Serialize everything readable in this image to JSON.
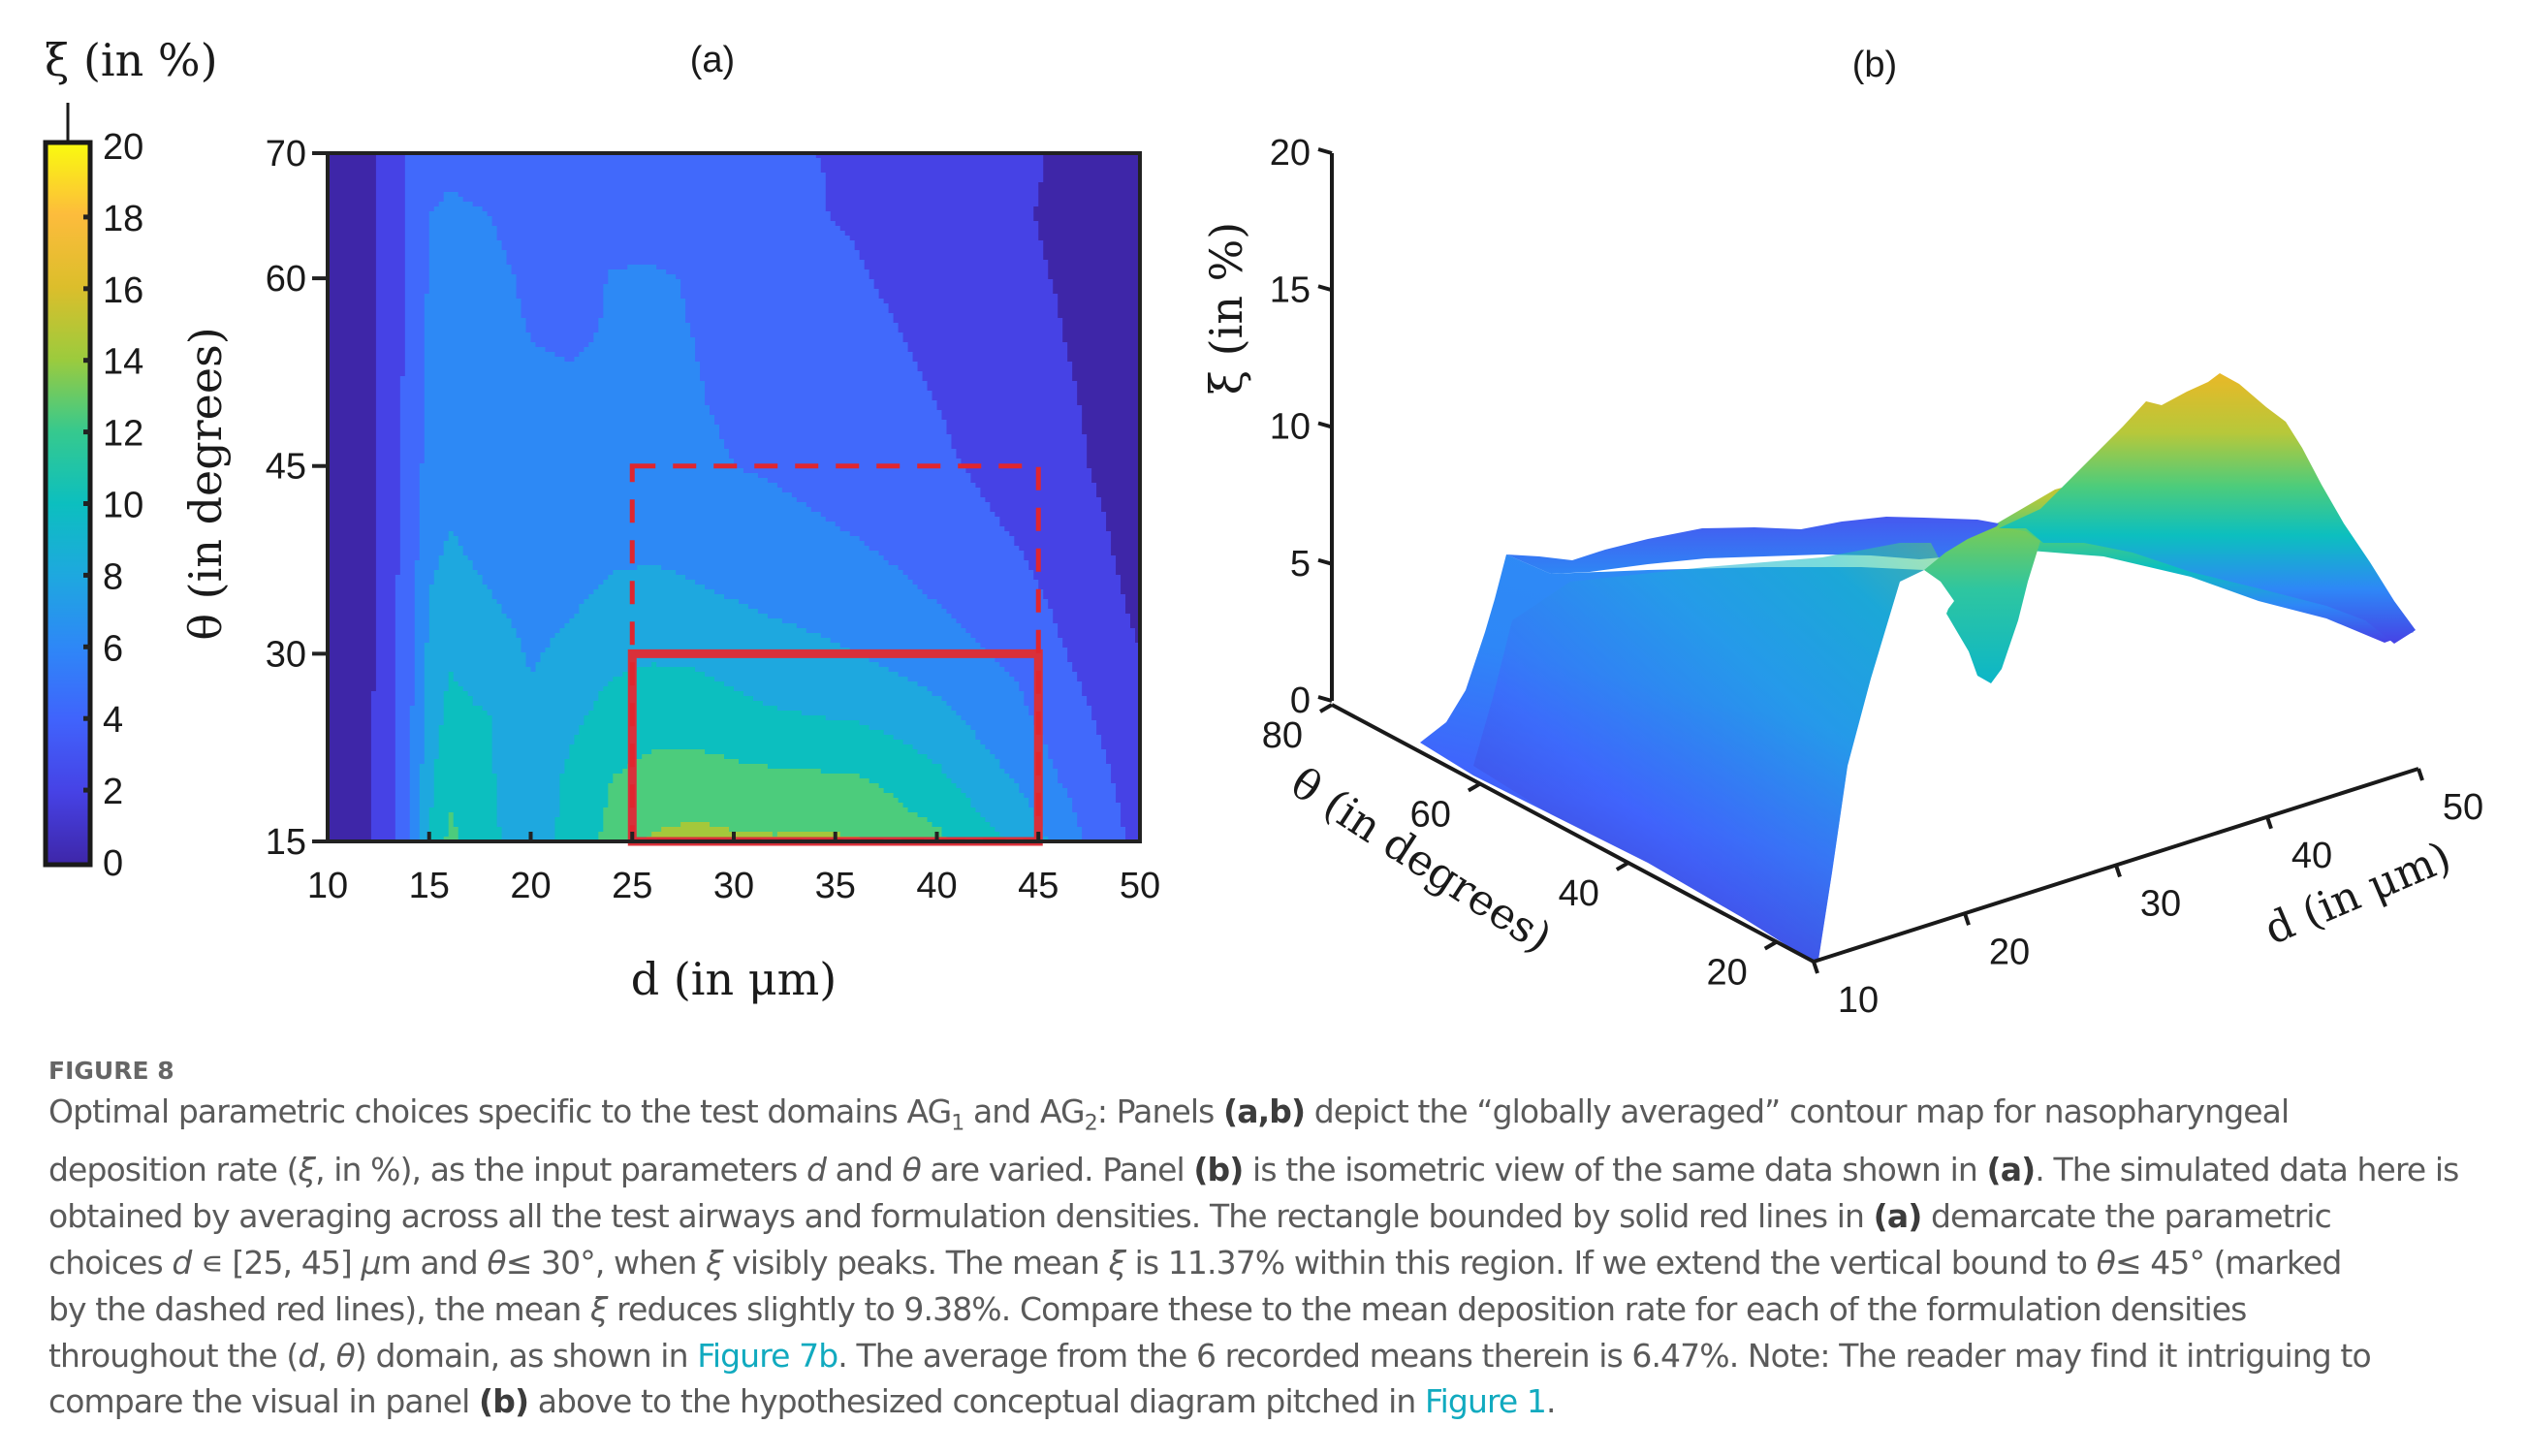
{
  "figure": {
    "label": "FIGURE 8",
    "caption_lines": [
      [
        {
          "t": "Optimal parametric choices specific to the test domains AG"
        },
        {
          "t": "1",
          "sub": true
        },
        {
          "t": " and AG"
        },
        {
          "t": "2",
          "sub": true
        },
        {
          "t": ": Panels "
        },
        {
          "t": "(a,b)",
          "b": true
        },
        {
          "t": " depict the “globally averaged” contour map for nasopharyngeal"
        }
      ],
      [
        {
          "t": "deposition rate ("
        },
        {
          "t": "ξ",
          "i": true
        },
        {
          "t": ", in %), as the input parameters "
        },
        {
          "t": "d",
          "i": true
        },
        {
          "t": " and "
        },
        {
          "t": "θ",
          "i": true
        },
        {
          "t": " are varied. Panel "
        },
        {
          "t": "(b)",
          "b": true
        },
        {
          "t": " is the isometric view of the same data shown in "
        },
        {
          "t": "(a)",
          "b": true
        },
        {
          "t": ". The simulated data here is"
        }
      ],
      [
        {
          "t": "obtained by averaging across all the test airways and formulation densities. The rectangle bounded by solid red lines in "
        },
        {
          "t": "(a)",
          "b": true
        },
        {
          "t": " demarcate the parametric"
        }
      ],
      [
        {
          "t": "choices "
        },
        {
          "t": "d",
          "i": true
        },
        {
          "t": " ∊ [25, 45] "
        },
        {
          "t": "μ",
          "i": true
        },
        {
          "t": "m and "
        },
        {
          "t": "θ",
          "i": true
        },
        {
          "t": "≤ 30°, when "
        },
        {
          "t": "ξ",
          "i": true
        },
        {
          "t": " visibly peaks. The mean "
        },
        {
          "t": "ξ",
          "i": true
        },
        {
          "t": " is 11.37% within this region. If we extend the vertical bound to "
        },
        {
          "t": "θ",
          "i": true
        },
        {
          "t": "≤ 45° (marked"
        }
      ],
      [
        {
          "t": "by the dashed red lines), the mean "
        },
        {
          "t": "ξ",
          "i": true
        },
        {
          "t": " reduces slightly to 9.38%. Compare these to the mean deposition rate for each of the formulation densities"
        }
      ],
      [
        {
          "t": "throughout the ("
        },
        {
          "t": "d",
          "i": true
        },
        {
          "t": ", "
        },
        {
          "t": "θ",
          "i": true
        },
        {
          "t": ") domain, as shown in "
        },
        {
          "t": "Figure 7b",
          "link": true
        },
        {
          "t": ". The average from the 6 recorded means therein is 6.47%. Note: The reader may find it intriguing to"
        }
      ],
      [
        {
          "t": "compare the visual in panel "
        },
        {
          "t": "(b)",
          "b": true
        },
        {
          "t": " above to the hypothesized conceptual diagram pitched in "
        },
        {
          "t": "Figure 1",
          "link": true
        },
        {
          "t": "."
        }
      ]
    ]
  },
  "colors": {
    "region_solid": "#d9303a",
    "region_dashed": "#e0262e",
    "caption_text": "#5a5a5a",
    "link": "#11aabf"
  },
  "chart_data": [
    {
      "type": "heatmap",
      "panel_label": "(a)",
      "xlabel": "d (in μm)",
      "ylabel": "θ (in degrees)",
      "colorbar_label": "ξ (in %)",
      "x_ticks": [
        "10",
        "15",
        "20",
        "25",
        "30",
        "35",
        "40",
        "45",
        "50"
      ],
      "y_ticks": [
        "15",
        "30",
        "45",
        "60",
        "70"
      ],
      "colorbar_ticks": [
        "0",
        "2",
        "4",
        "6",
        "8",
        "10",
        "12",
        "14",
        "16",
        "18",
        "20"
      ],
      "xlim": [
        10,
        50
      ],
      "ylim": [
        15,
        70
      ],
      "clim": [
        0,
        20
      ],
      "contour_levels": [
        0,
        2,
        4,
        6,
        8,
        10,
        12,
        14
      ],
      "x": [
        10,
        12,
        14,
        15,
        16,
        18,
        20,
        22,
        24,
        26,
        28,
        30,
        32,
        34,
        36,
        38,
        40,
        42,
        44,
        46,
        48,
        50
      ],
      "y": [
        15,
        20,
        25,
        30,
        35,
        40,
        45,
        50,
        55,
        60,
        65,
        70
      ],
      "z": [
        [
          0.5,
          1.5,
          5.5,
          10.0,
          12.5,
          10.5,
          8.5,
          11.0,
          12.5,
          14.2,
          14.5,
          14.3,
          14.2,
          14.3,
          14.2,
          13.0,
          12.5,
          11.0,
          9.5,
          7.5,
          5.0,
          3.5
        ],
        [
          0.5,
          1.5,
          5.5,
          9.5,
          11.5,
          10.2,
          8.5,
          10.5,
          12.0,
          12.8,
          13.0,
          12.6,
          12.4,
          12.3,
          12.2,
          11.5,
          10.5,
          9.0,
          7.8,
          6.0,
          4.5,
          3.0
        ],
        [
          0.5,
          1.5,
          5.5,
          9.0,
          10.5,
          10.0,
          8.3,
          9.5,
          10.8,
          11.0,
          11.0,
          10.6,
          10.2,
          10.0,
          9.8,
          9.2,
          8.5,
          7.5,
          6.5,
          5.0,
          3.8,
          2.5
        ],
        [
          0.5,
          1.5,
          5.0,
          8.5,
          9.8,
          9.0,
          7.8,
          8.5,
          9.5,
          9.8,
          9.7,
          9.2,
          8.8,
          8.5,
          8.0,
          7.5,
          7.0,
          6.2,
          5.5,
          4.2,
          3.2,
          2.0
        ],
        [
          0.5,
          1.5,
          5.0,
          8.0,
          8.8,
          8.0,
          7.2,
          7.6,
          8.3,
          8.5,
          8.2,
          7.8,
          7.4,
          7.0,
          6.7,
          6.3,
          5.8,
          5.2,
          4.5,
          3.6,
          2.6,
          1.5
        ],
        [
          0.5,
          1.5,
          4.8,
          7.2,
          8.0,
          7.2,
          6.6,
          6.9,
          7.3,
          7.3,
          7.1,
          6.8,
          6.5,
          6.2,
          5.9,
          5.5,
          5.0,
          4.4,
          3.8,
          3.0,
          2.2,
          1.2
        ],
        [
          0.5,
          1.5,
          4.6,
          6.8,
          7.0,
          6.6,
          6.3,
          6.4,
          6.6,
          6.5,
          6.3,
          6.0,
          5.8,
          5.5,
          5.2,
          4.8,
          4.3,
          3.8,
          3.2,
          2.6,
          1.8,
          0.8
        ],
        [
          0.5,
          1.5,
          4.5,
          6.5,
          6.8,
          6.5,
          6.2,
          6.2,
          6.3,
          6.2,
          6.1,
          5.8,
          5.6,
          5.3,
          4.9,
          4.5,
          4.0,
          3.5,
          3.0,
          2.4,
          1.6,
          0.6
        ],
        [
          0.5,
          1.5,
          4.4,
          6.3,
          6.6,
          6.4,
          6.0,
          5.9,
          6.1,
          6.2,
          6.0,
          5.7,
          5.4,
          5.0,
          4.6,
          4.1,
          3.6,
          3.2,
          2.7,
          2.1,
          1.4,
          0.5
        ],
        [
          0.5,
          1.5,
          4.3,
          6.2,
          6.5,
          6.3,
          5.8,
          5.4,
          6.1,
          6.2,
          5.9,
          5.6,
          5.2,
          4.7,
          4.2,
          3.7,
          3.3,
          2.9,
          2.4,
          1.9,
          1.2,
          0.4
        ],
        [
          0.5,
          1.5,
          4.2,
          6.0,
          6.4,
          6.0,
          5.5,
          5.3,
          5.4,
          5.3,
          5.0,
          4.7,
          4.4,
          4.1,
          3.8,
          3.4,
          3.0,
          2.6,
          2.2,
          1.7,
          1.1,
          0.4
        ],
        [
          0.5,
          1.5,
          4.1,
          5.2,
          5.4,
          5.2,
          5.0,
          4.8,
          4.6,
          4.4,
          4.2,
          4.1,
          4.0,
          4.0,
          3.9,
          3.5,
          3.2,
          2.8,
          2.4,
          1.8,
          1.2,
          0.5
        ]
      ],
      "annotations": [
        {
          "type": "rectangle",
          "style": "solid",
          "color": "#d9303a",
          "d_range": [
            25,
            45
          ],
          "theta_range": [
            15,
            30
          ]
        },
        {
          "type": "rectangle",
          "style": "dashed",
          "color": "#e0262e",
          "d_range": [
            25,
            45
          ],
          "theta_range": [
            15,
            45
          ]
        }
      ]
    },
    {
      "type": "surface",
      "panel_label": "(b)",
      "xlabel": "d (in μm)",
      "ylabel": "θ (in degrees)",
      "zlabel": "ξ (in %)",
      "x_ticks": [
        "10",
        "20",
        "30",
        "40",
        "50"
      ],
      "y_ticks": [
        "20",
        "40",
        "60",
        "80"
      ],
      "z_ticks": [
        "0",
        "5",
        "10",
        "15",
        "20"
      ],
      "xlim": [
        10,
        50
      ],
      "ylim": [
        15,
        80
      ],
      "zlim": [
        0,
        20
      ],
      "note": "isometric view of the same data shown in (a)"
    }
  ]
}
